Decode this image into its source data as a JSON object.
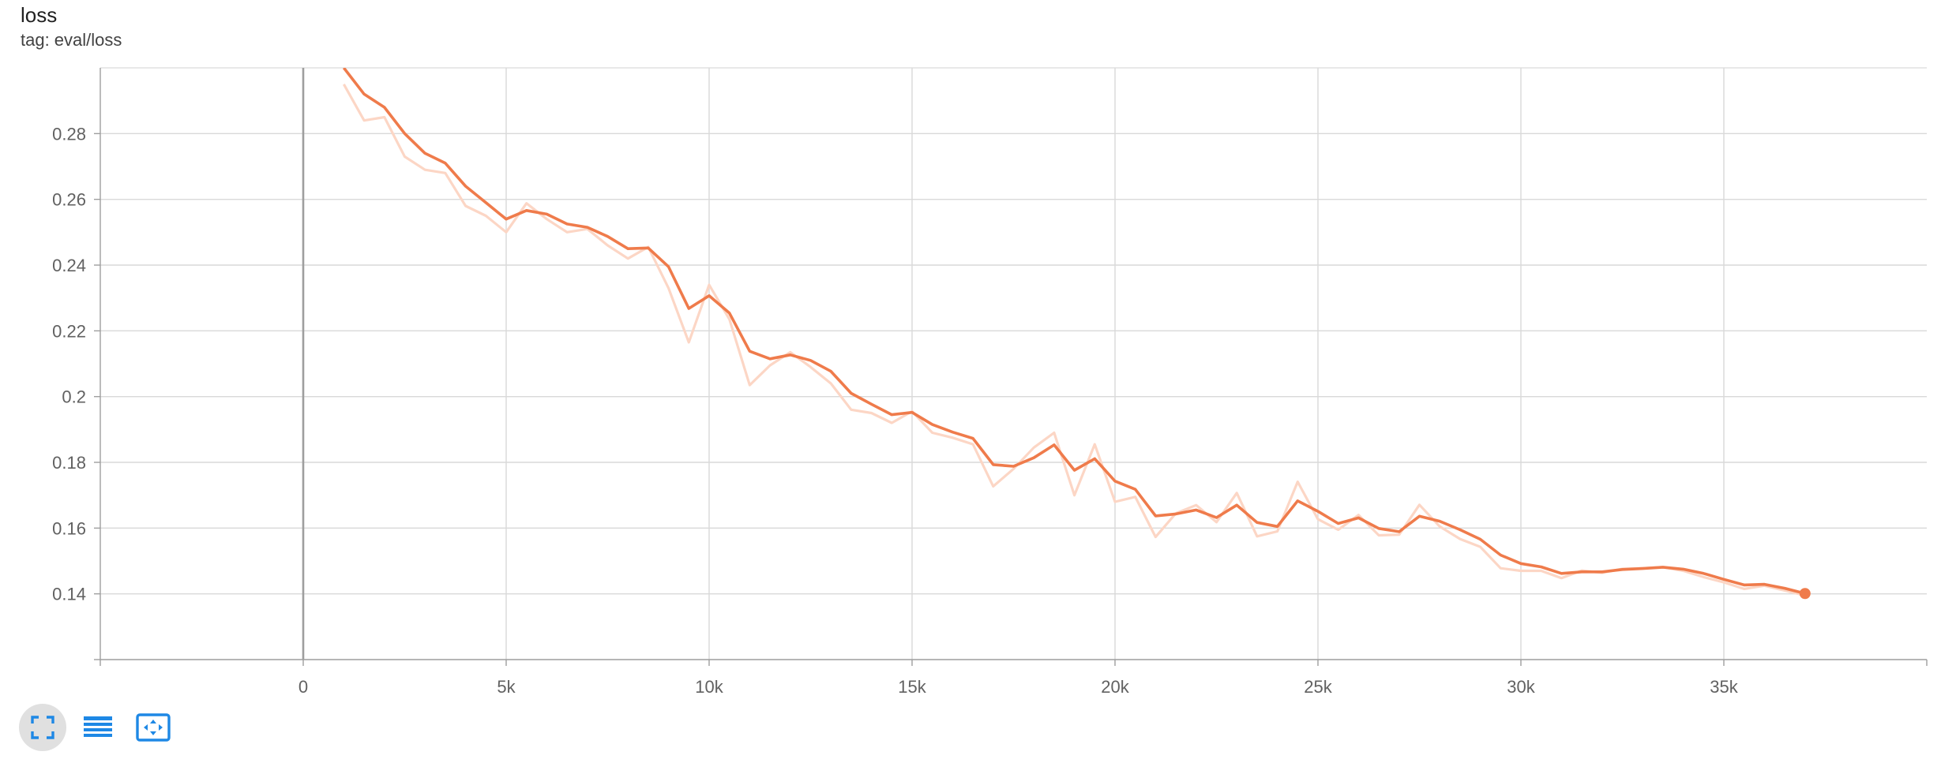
{
  "card": {
    "title": "loss",
    "tag": "tag: eval/loss"
  },
  "toolbar": {
    "buttons": [
      {
        "icon": "fullscreen-icon",
        "active": true
      },
      {
        "icon": "data-table-icon",
        "active": false
      },
      {
        "icon": "fit-domain-icon",
        "active": false
      }
    ]
  },
  "colors": {
    "series": "#ef7b4b",
    "raw_series": "#fcd6c5",
    "grid": "#d9d9d9",
    "axis": "#9e9e9e",
    "tick_text": "#616161",
    "accent_icon": "#1e88e5"
  },
  "chart_data": {
    "type": "line",
    "title": "loss",
    "xlabel": "",
    "ylabel": "",
    "xlim": [
      -5000,
      40000
    ],
    "ylim": [
      0.12,
      0.3
    ],
    "x_ticks": [
      0,
      5000,
      10000,
      15000,
      20000,
      25000,
      30000,
      35000
    ],
    "x_tick_labels": [
      "0",
      "5k",
      "10k",
      "15k",
      "20k",
      "25k",
      "30k",
      "35k"
    ],
    "y_ticks": [
      0.14,
      0.16,
      0.18,
      0.2,
      0.22,
      0.24,
      0.26,
      0.28
    ],
    "y_tick_labels": [
      "0.14",
      "0.16",
      "0.18",
      "0.2",
      "0.22",
      "0.24",
      "0.26",
      "0.28"
    ],
    "grid": true,
    "series": [
      {
        "name": "",
        "kind": "smoothed",
        "x": [
          1000,
          1500,
          2000,
          2500,
          3000,
          3500,
          4000,
          4500,
          5000,
          5500,
          6000,
          6500,
          7000,
          7500,
          8000,
          8500,
          9000,
          9500,
          10000,
          10500,
          11000,
          11500,
          12000,
          12500,
          13000,
          13500,
          14000,
          14500,
          15000,
          15500,
          16000,
          16500,
          17000,
          17500,
          18000,
          18500,
          19000,
          19500,
          20000,
          20500,
          21000,
          21500,
          22000,
          22500,
          23000,
          23500,
          24000,
          24500,
          25000,
          25500,
          26000,
          26500,
          27000,
          27500,
          28000,
          28500,
          29000,
          29500,
          30000,
          30500,
          31000,
          31500,
          32000,
          32500,
          33000,
          33500,
          34000,
          34500,
          35000,
          35500,
          36000,
          36500,
          37000
        ],
        "y": [
          0.3,
          0.292,
          0.288,
          0.28,
          0.274,
          0.271,
          0.264,
          0.259,
          0.254,
          0.2566,
          0.2555,
          0.2525,
          0.2515,
          0.2487,
          0.245,
          0.2452,
          0.2395,
          0.2268,
          0.2307,
          0.2254,
          0.2138,
          0.2115,
          0.2127,
          0.211,
          0.2077,
          0.201,
          0.1977,
          0.1945,
          0.1952,
          0.1915,
          0.1892,
          0.1873,
          0.1793,
          0.1788,
          0.1814,
          0.1853,
          0.1776,
          0.1811,
          0.1743,
          0.1718,
          0.1637,
          0.1643,
          0.1655,
          0.1632,
          0.167,
          0.1617,
          0.1605,
          0.1683,
          0.1651,
          0.1614,
          0.1631,
          0.1599,
          0.1589,
          0.1636,
          0.1621,
          0.1595,
          0.1566,
          0.1518,
          0.1492,
          0.1482,
          0.1462,
          0.1467,
          0.1467,
          0.1474,
          0.1477,
          0.1481,
          0.1475,
          0.1462,
          0.1444,
          0.1427,
          0.1429,
          0.1417,
          0.1401
        ]
      },
      {
        "name": "",
        "kind": "raw",
        "x": [
          1000,
          1500,
          2000,
          2500,
          3000,
          3500,
          4000,
          4500,
          5000,
          5500,
          6000,
          6500,
          7000,
          7500,
          8000,
          8500,
          9000,
          9500,
          10000,
          10500,
          11000,
          11500,
          12000,
          12500,
          13000,
          13500,
          14000,
          14500,
          15000,
          15500,
          16000,
          16500,
          17000,
          17500,
          18000,
          18500,
          19000,
          19500,
          20000,
          20500,
          21000,
          21500,
          22000,
          22500,
          23000,
          23500,
          24000,
          24500,
          25000,
          25500,
          26000,
          26500,
          27000,
          27500,
          28000,
          28500,
          29000,
          29500,
          30000,
          30500,
          31000,
          31500,
          32000,
          32500,
          33000,
          33500,
          34000,
          34500,
          35000,
          35500,
          36000,
          36500,
          37000
        ],
        "y": [
          0.295,
          0.284,
          0.285,
          0.273,
          0.269,
          0.268,
          0.258,
          0.255,
          0.25,
          0.2588,
          0.254,
          0.25,
          0.251,
          0.246,
          0.242,
          0.2455,
          0.233,
          0.2165,
          0.234,
          0.2235,
          0.2035,
          0.2095,
          0.2135,
          0.209,
          0.204,
          0.196,
          0.195,
          0.192,
          0.1955,
          0.189,
          0.1875,
          0.1855,
          0.1727,
          0.178,
          0.1845,
          0.189,
          0.17,
          0.1855,
          0.168,
          0.1695,
          0.1573,
          0.1645,
          0.167,
          0.1618,
          0.1707,
          0.1575,
          0.159,
          0.1741,
          0.1627,
          0.1595,
          0.164,
          0.1578,
          0.158,
          0.1671,
          0.1605,
          0.1567,
          0.1543,
          0.1478,
          0.147,
          0.147,
          0.1448,
          0.1471,
          0.1464,
          0.1476,
          0.1478,
          0.1481,
          0.147,
          0.1451,
          0.1435,
          0.1415,
          0.1425,
          0.141,
          0.1395
        ]
      }
    ]
  }
}
